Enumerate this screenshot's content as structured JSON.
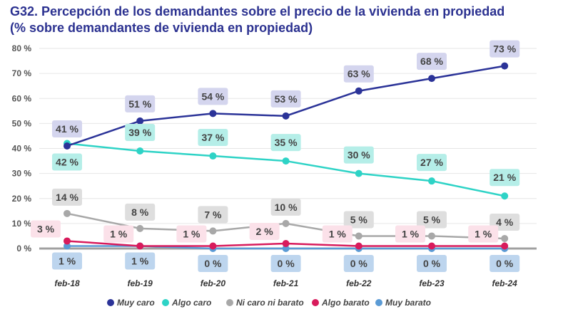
{
  "chart_data": {
    "type": "line",
    "title": "G32. Percepción de los demandantes sobre el precio de la vivienda en propiedad",
    "subtitle": "(% sobre demandantes de vivienda en propiedad)",
    "categories": [
      "feb-18",
      "feb-19",
      "feb-20",
      "feb-21",
      "feb-22",
      "feb-23",
      "feb-24"
    ],
    "ylim": [
      0,
      80
    ],
    "yticks": [
      "0 %",
      "10 %",
      "20 %",
      "30 %",
      "40 %",
      "50 %",
      "60 %",
      "70 %",
      "80 %"
    ],
    "grid": true,
    "legend": "bottom",
    "series": [
      {
        "name": "Muy caro",
        "color": "#2b3398",
        "label_bg": "#d4d5ee",
        "values": [
          41,
          51,
          54,
          53,
          63,
          68,
          73
        ]
      },
      {
        "name": "Algo caro",
        "color": "#2ed3c6",
        "label_bg": "#b5eee8",
        "values": [
          42,
          39,
          37,
          35,
          30,
          27,
          21
        ]
      },
      {
        "name": "Ni caro ni barato",
        "color": "#a8a8a8",
        "label_bg": "#dedede",
        "values": [
          14,
          8,
          7,
          10,
          5,
          5,
          4
        ]
      },
      {
        "name": "Algo barato",
        "color": "#d81b5c",
        "label_bg": "#fbe1e9",
        "values": [
          3,
          1,
          1,
          2,
          1,
          1,
          1
        ]
      },
      {
        "name": "Muy barato",
        "color": "#5b9bd5",
        "label_bg": "#bdd5ee",
        "values": [
          1,
          1,
          0,
          0,
          0,
          0,
          0
        ]
      }
    ]
  }
}
